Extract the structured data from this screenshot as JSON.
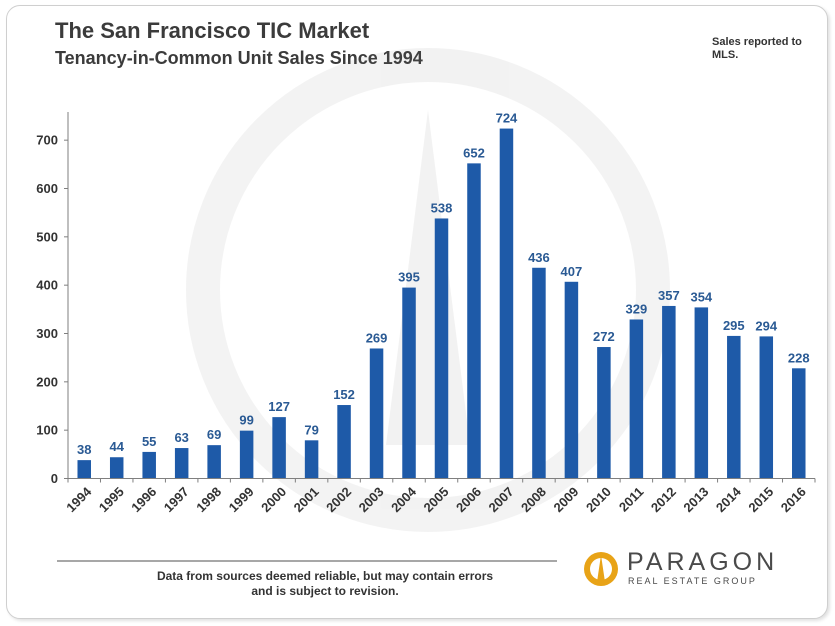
{
  "header": {
    "title": "The San Francisco TIC Market",
    "subtitle": "Tenancy-in-Common Unit Sales Since 1994",
    "note": "Sales reported to MLS."
  },
  "footer": {
    "disclaimer_line1": "Data from sources deemed reliable, but may contain errors",
    "disclaimer_line2": "and is subject to revision."
  },
  "logo": {
    "name": "PARAGON",
    "tagline": "REAL ESTATE GROUP"
  },
  "colors": {
    "bar": "#1e5aa8",
    "data_label": "#2a5a94",
    "axis": "#7f7f7f",
    "logo_gold": "#e8a317"
  },
  "chart_data": {
    "type": "bar",
    "title": "The San Francisco TIC Market",
    "subtitle": "Tenancy-in-Common Unit Sales Since 1994",
    "xlabel": "",
    "ylabel": "",
    "categories": [
      "1994",
      "1995",
      "1996",
      "1997",
      "1998",
      "1999",
      "2000",
      "2001",
      "2002",
      "2003",
      "2004",
      "2005",
      "2006",
      "2007",
      "2008",
      "2009",
      "2010",
      "2011",
      "2012",
      "2013",
      "2014",
      "2015",
      "2016"
    ],
    "values": [
      38,
      44,
      55,
      63,
      69,
      99,
      127,
      79,
      152,
      269,
      395,
      538,
      652,
      724,
      436,
      407,
      272,
      329,
      357,
      354,
      295,
      294,
      228
    ],
    "ylim": [
      0,
      750
    ],
    "yticks": [
      0,
      100,
      200,
      300,
      400,
      500,
      600,
      700
    ],
    "grid": false,
    "legend": "none",
    "data_labels": true
  }
}
